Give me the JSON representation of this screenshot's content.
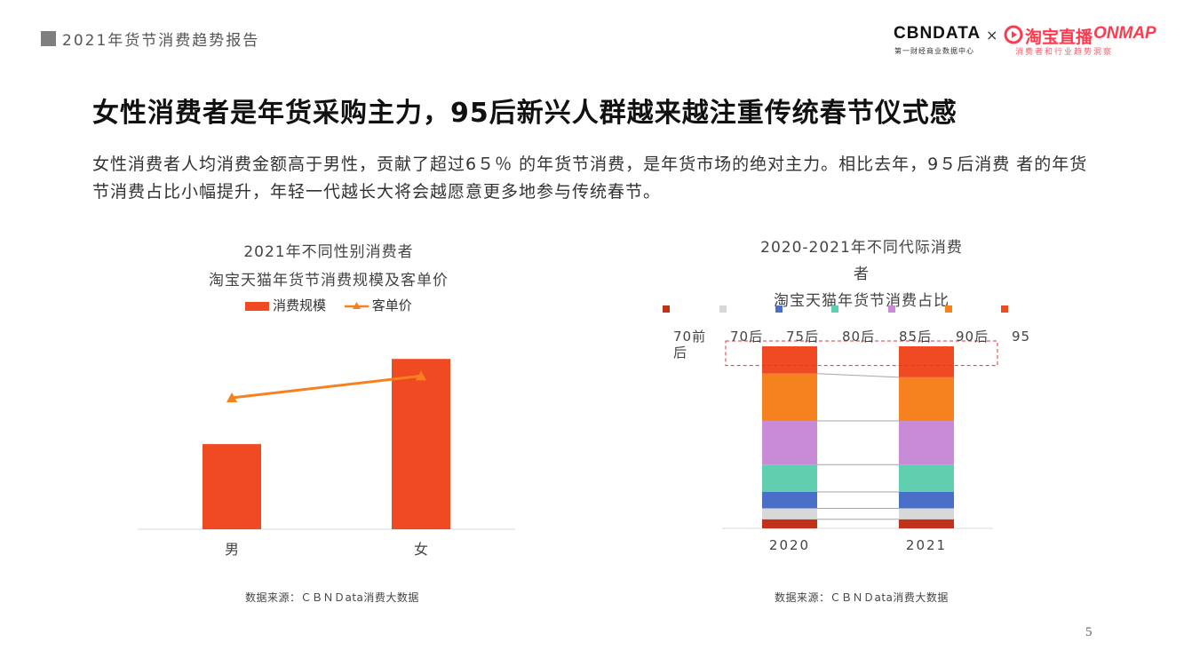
{
  "header": {
    "title": "2021年货节消费趋势报告",
    "logo_cbndata": "CBNDATA",
    "logo_cbndata_sub": "第一财经商业数据中心",
    "logo_times": "×",
    "logo_taobao": "淘宝直播",
    "logo_onmap": "ONMAP",
    "logo_taobao_sub": "消费者和行业趋势洞察"
  },
  "main": {
    "title": "女性消费者是年货采购主力，95后新兴人群越来越注重传统春节仪式感",
    "description": "女性消费者人均消费金额高于男性，贡献了超过6５％ 的年货节消费，是年货市场的绝对主力。相比去年，9５后消费 者的年货节消费占比小幅提升，年轻一代越长大将会越愿意更多地参与传统春节。"
  },
  "colors": {
    "bar": "#f04a22",
    "line": "#f5821f",
    "gen_70_before": "#c0321a",
    "gen_70": "#d8d8d8",
    "gen_75": "#4a6fc9",
    "gen_80": "#5fcfb0",
    "gen_85": "#c98bd6",
    "gen_90": "#f5821f",
    "gen_95": "#f04a22",
    "highlight_box": "#d9363e"
  },
  "chart_data": [
    {
      "type": "bar",
      "title_lines": [
        "2021年不同性别消费者",
        "淘宝天猫年货节消费规模及客单价"
      ],
      "categories": [
        "男",
        "女"
      ],
      "series": [
        {
          "name": "消费规模",
          "kind": "bar",
          "values": [
            35,
            70
          ]
        },
        {
          "name": "客单价",
          "kind": "line",
          "marker": "triangle",
          "values": [
            54,
            63
          ]
        }
      ],
      "ylim": [
        0,
        100
      ],
      "grid": false,
      "legend_position": "top",
      "source": "数据来源：ＣＢＮＤata消费大数据"
    },
    {
      "type": "bar",
      "stacked": true,
      "title_lines": [
        "2020-2021年不同代际消费",
        "者",
        "淘宝天猫年货节消费占比"
      ],
      "categories": [
        "2020",
        "2021"
      ],
      "legend_labels": [
        "70前",
        "70后",
        "75后",
        "80后",
        "85后",
        "90后",
        "95"
      ],
      "legend_extra": "后",
      "series": [
        {
          "name": "70前",
          "values": [
            5,
            5
          ]
        },
        {
          "name": "70后",
          "values": [
            6,
            6
          ]
        },
        {
          "name": "75后",
          "values": [
            9,
            9
          ]
        },
        {
          "name": "80后",
          "values": [
            15,
            15
          ]
        },
        {
          "name": "85后",
          "values": [
            24,
            24
          ]
        },
        {
          "name": "90后",
          "values": [
            26,
            24
          ]
        },
        {
          "name": "95",
          "values": [
            15,
            17
          ]
        }
      ],
      "ylim": [
        0,
        100
      ],
      "grid": false,
      "legend_position": "top",
      "highlight": "95",
      "source": "数据来源：ＣＢＮＤata消费大数据"
    }
  ],
  "footer": {
    "page_number": "5"
  }
}
